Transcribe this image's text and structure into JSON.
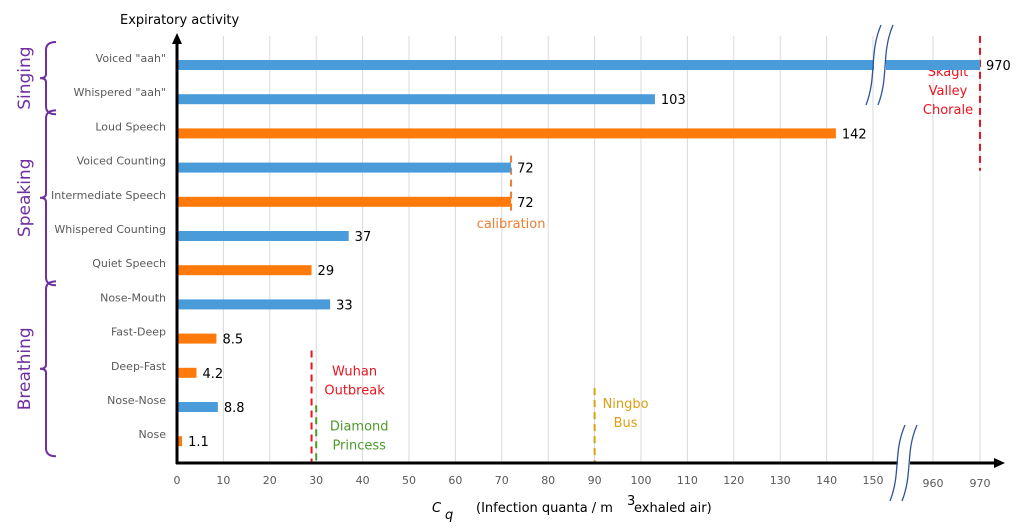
{
  "chart_data": {
    "type": "bar",
    "orientation": "horizontal",
    "title": "",
    "ylabel": "Expiratory activity",
    "xlabel_symbol": "C",
    "xlabel_subscript": "q",
    "xlabel_text": "(Infection quanta / m",
    "xlabel_sup": "3",
    "xlabel_tail": "  exhaled air)",
    "xlim": [
      0,
      970
    ],
    "axis_break": {
      "from": 155,
      "to": 955
    },
    "xticks": [
      0,
      10,
      20,
      30,
      40,
      50,
      60,
      70,
      80,
      90,
      100,
      110,
      120,
      130,
      140,
      150,
      960,
      970
    ],
    "grid": true,
    "legend": "none",
    "series_colors": {
      "blue": "#4a9bd9",
      "orange": "#ff7a0a"
    },
    "categories": [
      {
        "label": "Voiced \"aah\"",
        "value": 970,
        "value_label": "970",
        "color": "blue"
      },
      {
        "label": "Whispered \"aah\"",
        "value": 103,
        "value_label": "103",
        "color": "blue"
      },
      {
        "label": "Loud Speech",
        "value": 142,
        "value_label": "142",
        "color": "orange"
      },
      {
        "label": "Voiced Counting",
        "value": 72,
        "value_label": "72",
        "color": "blue"
      },
      {
        "label": "Intermediate Speech",
        "value": 72,
        "value_label": "72",
        "color": "orange"
      },
      {
        "label": "Whispered Counting",
        "value": 37,
        "value_label": "37",
        "color": "blue"
      },
      {
        "label": "Quiet Speech",
        "value": 29,
        "value_label": "29",
        "color": "orange"
      },
      {
        "label": "Nose-Mouth",
        "value": 33,
        "value_label": "33",
        "color": "blue"
      },
      {
        "label": "Fast-Deep",
        "value": 8.5,
        "value_label": "8.5",
        "color": "orange"
      },
      {
        "label": "Deep-Fast",
        "value": 4.2,
        "value_label": "4.2",
        "color": "orange"
      },
      {
        "label": "Nose-Nose",
        "value": 8.8,
        "value_label": "8.8",
        "color": "blue"
      },
      {
        "label": "Nose",
        "value": 1.1,
        "value_label": "1.1",
        "color": "orange"
      }
    ],
    "groups": [
      {
        "label": "Singing",
        "first": 0,
        "last": 1
      },
      {
        "label": "Speaking",
        "first": 2,
        "last": 6
      },
      {
        "label": "Breathing",
        "first": 7,
        "last": 11
      }
    ],
    "reference_lines": [
      {
        "x": 72,
        "label": [
          "calibration"
        ],
        "color": "#ed7d31",
        "from_cat": 3,
        "to_cat": 4,
        "label_pos": "below"
      },
      {
        "x": 29,
        "label": [
          "Wuhan",
          "Outbreak"
        ],
        "color": "#e8141e",
        "from_cat": 8.7,
        "to_cat": 12
      },
      {
        "x": 30,
        "label": [
          "Diamond",
          "Princess"
        ],
        "color": "#4c9a2a",
        "from_cat": 10.3,
        "to_cat": 12
      },
      {
        "x": 90,
        "label": [
          "Ningbo",
          "Bus"
        ],
        "color": "#d9a016",
        "from_cat": 9.8,
        "to_cat": 12
      },
      {
        "x": 970,
        "label": [
          "Skagit",
          "Valley",
          "Chorale"
        ],
        "color": "#e8141e",
        "from_cat": -0.5,
        "to_cat": 2.8
      }
    ]
  }
}
